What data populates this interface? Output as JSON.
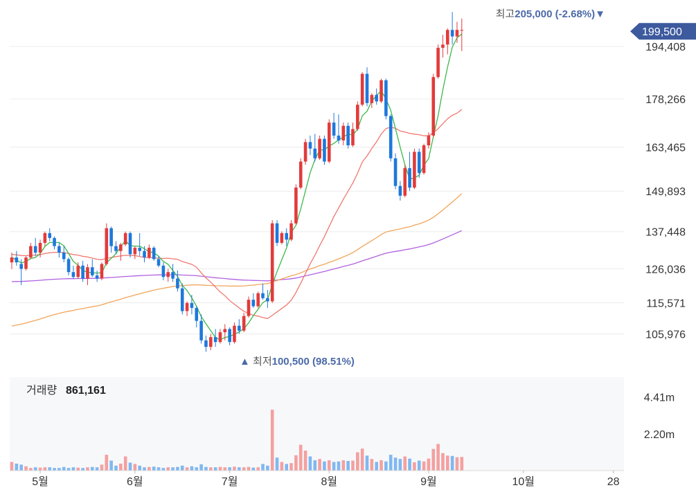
{
  "chart_data": {
    "type": "candlestick",
    "price_axis_ticks": [
      "194,408",
      "178,266",
      "163,465",
      "149,893",
      "137,448",
      "126,036",
      "115,571",
      "105,976"
    ],
    "price_axis_values": [
      194408,
      178266,
      163465,
      149893,
      137448,
      126036,
      115571,
      105976
    ],
    "price_range": [
      98000,
      207000
    ],
    "month_labels": [
      "5월",
      "6월",
      "7월",
      "8월",
      "9월",
      "10월",
      "28"
    ],
    "month_label_index": [
      6,
      26,
      46,
      67,
      88,
      108,
      127
    ],
    "high_marker": {
      "label": "최고",
      "value": "205,000",
      "pct": "(-2.68%)",
      "arrow": "▼",
      "index": 124
    },
    "low_marker": {
      "label": "최저",
      "value": "100,500",
      "pct": "(98.51%)",
      "arrow": "▲",
      "index": 49
    },
    "current_price": "199,500",
    "volume_label": "거래량",
    "volume_value": "861,161",
    "volume_axis_ticks": [
      "4.41m",
      "2.20m"
    ],
    "volume_axis_values": [
      4.41,
      2.2
    ],
    "volume_max_m": 5.6,
    "colors": {
      "up": "#e23b3b",
      "down": "#1e78dc",
      "ma5": "#3cb84a",
      "ma20": "#f07870",
      "ma60": "#f0a45a",
      "ma120": "#b060e0",
      "vol_up": "#f4a0a0",
      "vol_down": "#80b8f0",
      "badge": "#3d5a9e",
      "marker_text": "#4b6aa8"
    },
    "ohlc": [
      [
        128000,
        131000,
        126000,
        129500
      ],
      [
        129500,
        131500,
        127000,
        128000
      ],
      [
        127500,
        129000,
        121000,
        126000
      ],
      [
        126000,
        130000,
        125500,
        129500
      ],
      [
        129500,
        134000,
        129000,
        133000
      ],
      [
        133000,
        135500,
        130000,
        131000
      ],
      [
        131000,
        135000,
        129500,
        134000
      ],
      [
        134000,
        137500,
        133000,
        137000
      ],
      [
        137000,
        138500,
        134500,
        135500
      ],
      [
        135500,
        136000,
        132000,
        133000
      ],
      [
        133000,
        134000,
        129500,
        131000
      ],
      [
        131000,
        133000,
        128000,
        129000
      ],
      [
        129000,
        129500,
        124000,
        125000
      ],
      [
        125000,
        127000,
        123000,
        123500
      ],
      [
        123500,
        128000,
        123000,
        127000
      ],
      [
        127000,
        128500,
        122000,
        123000
      ],
      [
        123000,
        127500,
        121000,
        126500
      ],
      [
        126500,
        129000,
        123500,
        124000
      ],
      [
        124000,
        125500,
        122000,
        123000
      ],
      [
        123000,
        128000,
        122500,
        127500
      ],
      [
        127500,
        140000,
        127000,
        138500
      ],
      [
        138500,
        139000,
        131000,
        133000
      ],
      [
        133000,
        134500,
        130500,
        131500
      ],
      [
        131500,
        134000,
        128500,
        133500
      ],
      [
        133500,
        137500,
        133000,
        137000
      ],
      [
        137000,
        137500,
        129500,
        130500
      ],
      [
        130500,
        133000,
        129000,
        132500
      ],
      [
        132500,
        137000,
        130000,
        131500
      ],
      [
        131500,
        133000,
        128000,
        129500
      ],
      [
        129500,
        133500,
        129000,
        132500
      ],
      [
        132500,
        133000,
        128500,
        129000
      ],
      [
        129000,
        130000,
        126500,
        127000
      ],
      [
        127000,
        128000,
        122500,
        123500
      ],
      [
        123500,
        126000,
        122000,
        125000
      ],
      [
        125000,
        127500,
        122000,
        123000
      ],
      [
        123000,
        125500,
        119000,
        120000
      ],
      [
        120000,
        121500,
        112000,
        113000
      ],
      [
        113000,
        116000,
        111500,
        115500
      ],
      [
        115500,
        118000,
        112000,
        114000
      ],
      [
        114000,
        114500,
        108000,
        110000
      ],
      [
        110000,
        112000,
        103000,
        104000
      ],
      [
        104000,
        105500,
        100500,
        102000
      ],
      [
        102000,
        106000,
        101000,
        105000
      ],
      [
        105000,
        107500,
        102000,
        103500
      ],
      [
        103500,
        107500,
        103000,
        106500
      ],
      [
        106500,
        109000,
        104000,
        107500
      ],
      [
        107500,
        108000,
        102500,
        103500
      ],
      [
        103500,
        109500,
        103000,
        108500
      ],
      [
        108500,
        110500,
        106000,
        107000
      ],
      [
        107000,
        112500,
        106500,
        111500
      ],
      [
        111500,
        117500,
        111000,
        116500
      ],
      [
        116500,
        118500,
        114000,
        114500
      ],
      [
        114500,
        119000,
        114000,
        118500
      ],
      [
        118500,
        121500,
        116500,
        117000
      ],
      [
        117000,
        119500,
        114000,
        116000
      ],
      [
        116000,
        141000,
        115500,
        140000
      ],
      [
        140000,
        141000,
        133000,
        134000
      ],
      [
        134000,
        137500,
        133500,
        137000
      ],
      [
        137000,
        138500,
        133000,
        135000
      ],
      [
        135000,
        141000,
        134500,
        140000
      ],
      [
        140000,
        152000,
        139500,
        151000
      ],
      [
        151000,
        160000,
        150500,
        159000
      ],
      [
        159000,
        166000,
        158000,
        165000
      ],
      [
        165000,
        167000,
        161000,
        163000
      ],
      [
        163000,
        167500,
        159000,
        160000
      ],
      [
        160000,
        167000,
        159500,
        166000
      ],
      [
        166000,
        167000,
        158000,
        159000
      ],
      [
        159000,
        172000,
        158500,
        171000
      ],
      [
        171000,
        174000,
        166000,
        167000
      ],
      [
        167000,
        173500,
        164500,
        165500
      ],
      [
        165500,
        171000,
        164000,
        170000
      ],
      [
        170000,
        171000,
        163000,
        164000
      ],
      [
        164000,
        171000,
        163500,
        169000
      ],
      [
        169000,
        177500,
        168500,
        176500
      ],
      [
        176500,
        186500,
        176000,
        186000
      ],
      [
        186000,
        188000,
        176000,
        177000
      ],
      [
        177000,
        180000,
        175500,
        179500
      ],
      [
        179500,
        181500,
        176500,
        177500
      ],
      [
        177500,
        184500,
        177000,
        184000
      ],
      [
        184000,
        184500,
        172000,
        173000
      ],
      [
        173000,
        173500,
        159000,
        160000
      ],
      [
        160000,
        161500,
        150500,
        151500
      ],
      [
        151500,
        153000,
        147000,
        148500
      ],
      [
        148500,
        158000,
        148000,
        157000
      ],
      [
        157000,
        162000,
        150000,
        151000
      ],
      [
        151000,
        163000,
        150500,
        162000
      ],
      [
        162000,
        163000,
        154000,
        155500
      ],
      [
        155500,
        164500,
        155000,
        164000
      ],
      [
        164000,
        168000,
        163000,
        167000
      ],
      [
        167000,
        186000,
        166500,
        185000
      ],
      [
        185000,
        195000,
        184500,
        194000
      ],
      [
        194000,
        198000,
        191000,
        195000
      ],
      [
        195000,
        200000,
        192000,
        199500
      ],
      [
        199500,
        205000,
        195000,
        197500
      ],
      [
        197500,
        202000,
        195500,
        199500
      ],
      [
        199500,
        203000,
        193000,
        199500
      ]
    ],
    "volume_m": [
      0.52,
      0.42,
      0.36,
      0.26,
      0.16,
      0.2,
      0.18,
      0.2,
      0.2,
      0.16,
      0.16,
      0.22,
      0.16,
      0.2,
      0.18,
      0.16,
      0.2,
      0.22,
      0.2,
      0.36,
      0.95,
      0.6,
      0.3,
      0.42,
      0.85,
      0.48,
      0.4,
      0.3,
      0.2,
      0.22,
      0.24,
      0.2,
      0.16,
      0.2,
      0.2,
      0.22,
      0.3,
      0.2,
      0.26,
      0.2,
      0.38,
      0.22,
      0.2,
      0.2,
      0.22,
      0.2,
      0.2,
      0.24,
      0.2,
      0.2,
      0.22,
      0.18,
      0.2,
      0.4,
      0.3,
      3.65,
      0.78,
      0.52,
      0.4,
      0.45,
      0.92,
      1.55,
      1.2,
      0.85,
      0.62,
      0.7,
      0.55,
      0.62,
      0.52,
      0.55,
      0.62,
      0.58,
      0.6,
      1.1,
      1.32,
      0.9,
      0.7,
      0.52,
      0.62,
      0.55,
      0.95,
      0.78,
      0.7,
      0.85,
      0.72,
      0.5,
      0.6,
      0.55,
      0.72,
      1.3,
      1.6,
      1.05,
      0.9,
      0.88,
      0.8,
      0.82
    ]
  }
}
